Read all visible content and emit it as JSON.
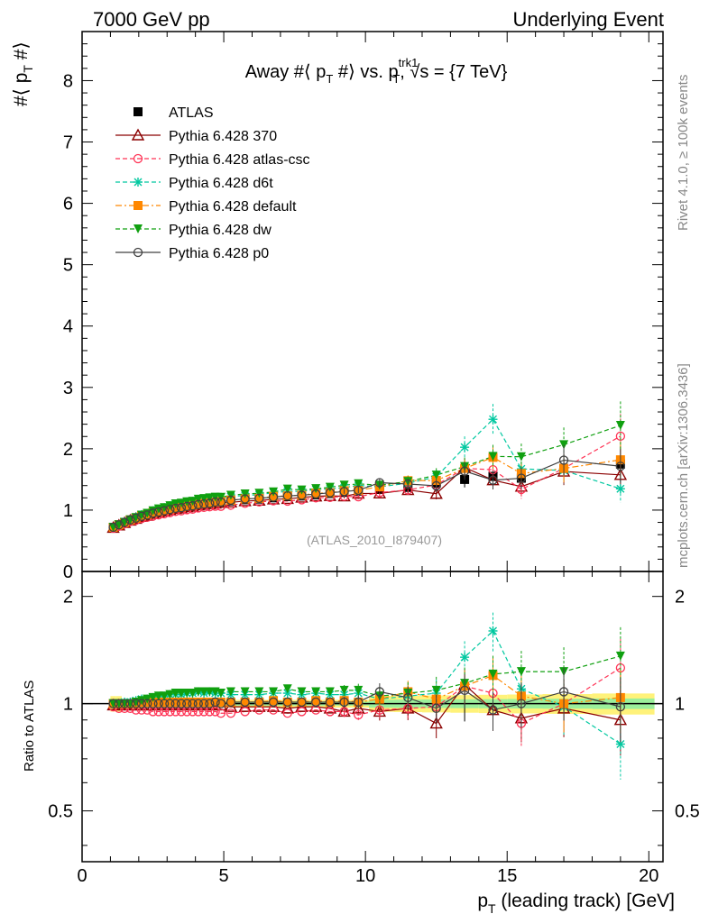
{
  "header": {
    "energy_label": "7000 GeV pp",
    "process_label": "Underlying Event"
  },
  "side_labels": {
    "rivet": "Rivet 4.1.0, ≥ 100k events",
    "mcplots": "mcplots.cern.ch [arXiv:1306.3436]"
  },
  "chart_data": {
    "type": "scatter",
    "title_main": "Away #⟨ p",
    "title_sub": "T",
    "title_mid": " #⟩ vs. p",
    "title_sup": "trk1",
    "title_sub2": "T",
    "title_end": ", √s = {7 TeV}",
    "watermark": "(ATLAS_2010_I879407)",
    "ylabel_main": "#⟨ p",
    "ylabel_sub": "T",
    "ylabel_end": " #⟩",
    "ratio_ylabel": "Ratio to ATLAS",
    "xlabel_main": "p",
    "xlabel_sub": "T",
    "xlabel_end": " (leading track) [GeV]",
    "xlim": [
      0,
      20.5
    ],
    "ylim": [
      0,
      8.8
    ],
    "ratio_ylim": [
      0.36,
      2.35
    ],
    "ratio_log": true,
    "x_ticks": [
      "0",
      "5",
      "10",
      "15",
      "20"
    ],
    "y_ticks": [
      "0",
      "1",
      "2",
      "3",
      "4",
      "5",
      "6",
      "7",
      "8"
    ],
    "ratio_ticks": [
      "0.5",
      "1",
      "2"
    ],
    "x": [
      1.1,
      1.3,
      1.5,
      1.7,
      1.9,
      2.1,
      2.3,
      2.5,
      2.7,
      2.9,
      3.1,
      3.3,
      3.5,
      3.7,
      3.9,
      4.1,
      4.3,
      4.5,
      4.7,
      4.9,
      5.25,
      5.75,
      6.25,
      6.75,
      7.25,
      7.75,
      8.25,
      8.75,
      9.25,
      9.75,
      10.5,
      11.5,
      12.5,
      13.5,
      14.5,
      15.5,
      17.0,
      19.0
    ],
    "data_values": [
      0.72,
      0.76,
      0.8,
      0.84,
      0.87,
      0.9,
      0.92,
      0.95,
      0.97,
      0.99,
      1.01,
      1.03,
      1.04,
      1.06,
      1.07,
      1.09,
      1.1,
      1.11,
      1.12,
      1.13,
      1.15,
      1.17,
      1.18,
      1.2,
      1.22,
      1.23,
      1.25,
      1.27,
      1.29,
      1.31,
      1.34,
      1.37,
      1.44,
      1.5,
      1.55,
      1.52,
      1.68,
      1.75
    ],
    "ratio_band_note": "ATLAS uncertainty band (green stat, yellow total)",
    "series": [
      {
        "name": "ATLAS",
        "color": "#000000",
        "marker": "square-filled",
        "dash": "none",
        "ratio": [
          1,
          1,
          1,
          1,
          1,
          1,
          1,
          1,
          1,
          1,
          1,
          1,
          1,
          1,
          1,
          1,
          1,
          1,
          1,
          1,
          1,
          1,
          1,
          1,
          1,
          1,
          1,
          1,
          1,
          1,
          1,
          1,
          1,
          1,
          1,
          1,
          1,
          1
        ]
      },
      {
        "name": "Pythia 6.428 370",
        "color": "#8b0000",
        "marker": "triangle-open",
        "dash": "solid",
        "ratio": [
          0.99,
          0.99,
          0.99,
          0.99,
          0.99,
          0.99,
          0.99,
          0.99,
          0.99,
          0.99,
          0.99,
          0.99,
          0.99,
          0.99,
          0.99,
          0.99,
          0.99,
          0.99,
          0.99,
          0.99,
          0.98,
          0.98,
          0.98,
          0.98,
          0.97,
          0.98,
          0.98,
          0.97,
          0.95,
          0.97,
          0.95,
          0.97,
          0.88,
          1.13,
          0.96,
          0.91,
          0.97,
          0.9
        ]
      },
      {
        "name": "Pythia 6.428 atlas-csc",
        "color": "#ff3355",
        "marker": "circle-open",
        "dash": "dash",
        "ratio": [
          0.98,
          0.97,
          0.97,
          0.97,
          0.96,
          0.96,
          0.96,
          0.95,
          0.95,
          0.95,
          0.95,
          0.95,
          0.95,
          0.95,
          0.95,
          0.95,
          0.95,
          0.95,
          0.95,
          0.94,
          0.94,
          0.95,
          0.96,
          0.96,
          0.94,
          0.95,
          0.96,
          0.95,
          0.95,
          0.93,
          0.96,
          0.97,
          0.98,
          1.12,
          1.07,
          0.88,
          1.0,
          1.26
        ]
      },
      {
        "name": "Pythia 6.428 d6t",
        "color": "#00c8a0",
        "marker": "star",
        "dash": "dash",
        "ratio": [
          1.0,
          1.0,
          1.01,
          1.01,
          1.02,
          1.03,
          1.03,
          1.04,
          1.04,
          1.05,
          1.06,
          1.06,
          1.06,
          1.07,
          1.07,
          1.08,
          1.07,
          1.08,
          1.07,
          1.07,
          1.06,
          1.06,
          1.06,
          1.07,
          1.07,
          1.06,
          1.07,
          1.06,
          1.06,
          1.07,
          1.03,
          1.05,
          1.07,
          1.35,
          1.6,
          1.1,
          0.98,
          0.77
        ]
      },
      {
        "name": "Pythia 6.428 default",
        "color": "#ff8800",
        "marker": "square-filled",
        "dash": "dashdot",
        "ratio": [
          1.0,
          1.0,
          1.0,
          1.0,
          1.0,
          1.01,
          1.01,
          1.01,
          1.01,
          1.01,
          1.01,
          1.01,
          1.01,
          1.01,
          1.01,
          1.01,
          1.01,
          1.01,
          1.01,
          1.01,
          1.01,
          1.01,
          1.01,
          1.02,
          1.01,
          1.01,
          1.02,
          1.01,
          1.02,
          1.01,
          1.03,
          1.08,
          1.03,
          1.12,
          1.2,
          1.05,
          1.0,
          1.04
        ]
      },
      {
        "name": "Pythia 6.428 dw",
        "color": "#10a010",
        "marker": "triangle-down-filled",
        "dash": "dash",
        "ratio": [
          1.0,
          1.0,
          1.0,
          1.0,
          1.01,
          1.02,
          1.03,
          1.04,
          1.05,
          1.05,
          1.06,
          1.07,
          1.07,
          1.07,
          1.07,
          1.08,
          1.08,
          1.08,
          1.08,
          1.07,
          1.08,
          1.08,
          1.08,
          1.08,
          1.1,
          1.08,
          1.08,
          1.08,
          1.09,
          1.09,
          1.05,
          1.07,
          1.09,
          1.14,
          1.21,
          1.23,
          1.23,
          1.36
        ]
      },
      {
        "name": "Pythia 6.428 p0",
        "color": "#404040",
        "marker": "circle-open",
        "dash": "solid",
        "ratio": [
          1.0,
          1.0,
          1.0,
          1.0,
          1.0,
          1.0,
          1.0,
          1.0,
          1.0,
          1.0,
          1.0,
          1.0,
          1.0,
          1.0,
          1.0,
          1.0,
          1.0,
          1.0,
          1.01,
          1.0,
          1.01,
          1.01,
          1.01,
          1.01,
          1.01,
          1.01,
          1.01,
          1.01,
          1.01,
          1.01,
          1.08,
          1.04,
          0.97,
          1.09,
          0.96,
          1.0,
          1.08,
          0.98
        ]
      }
    ]
  }
}
